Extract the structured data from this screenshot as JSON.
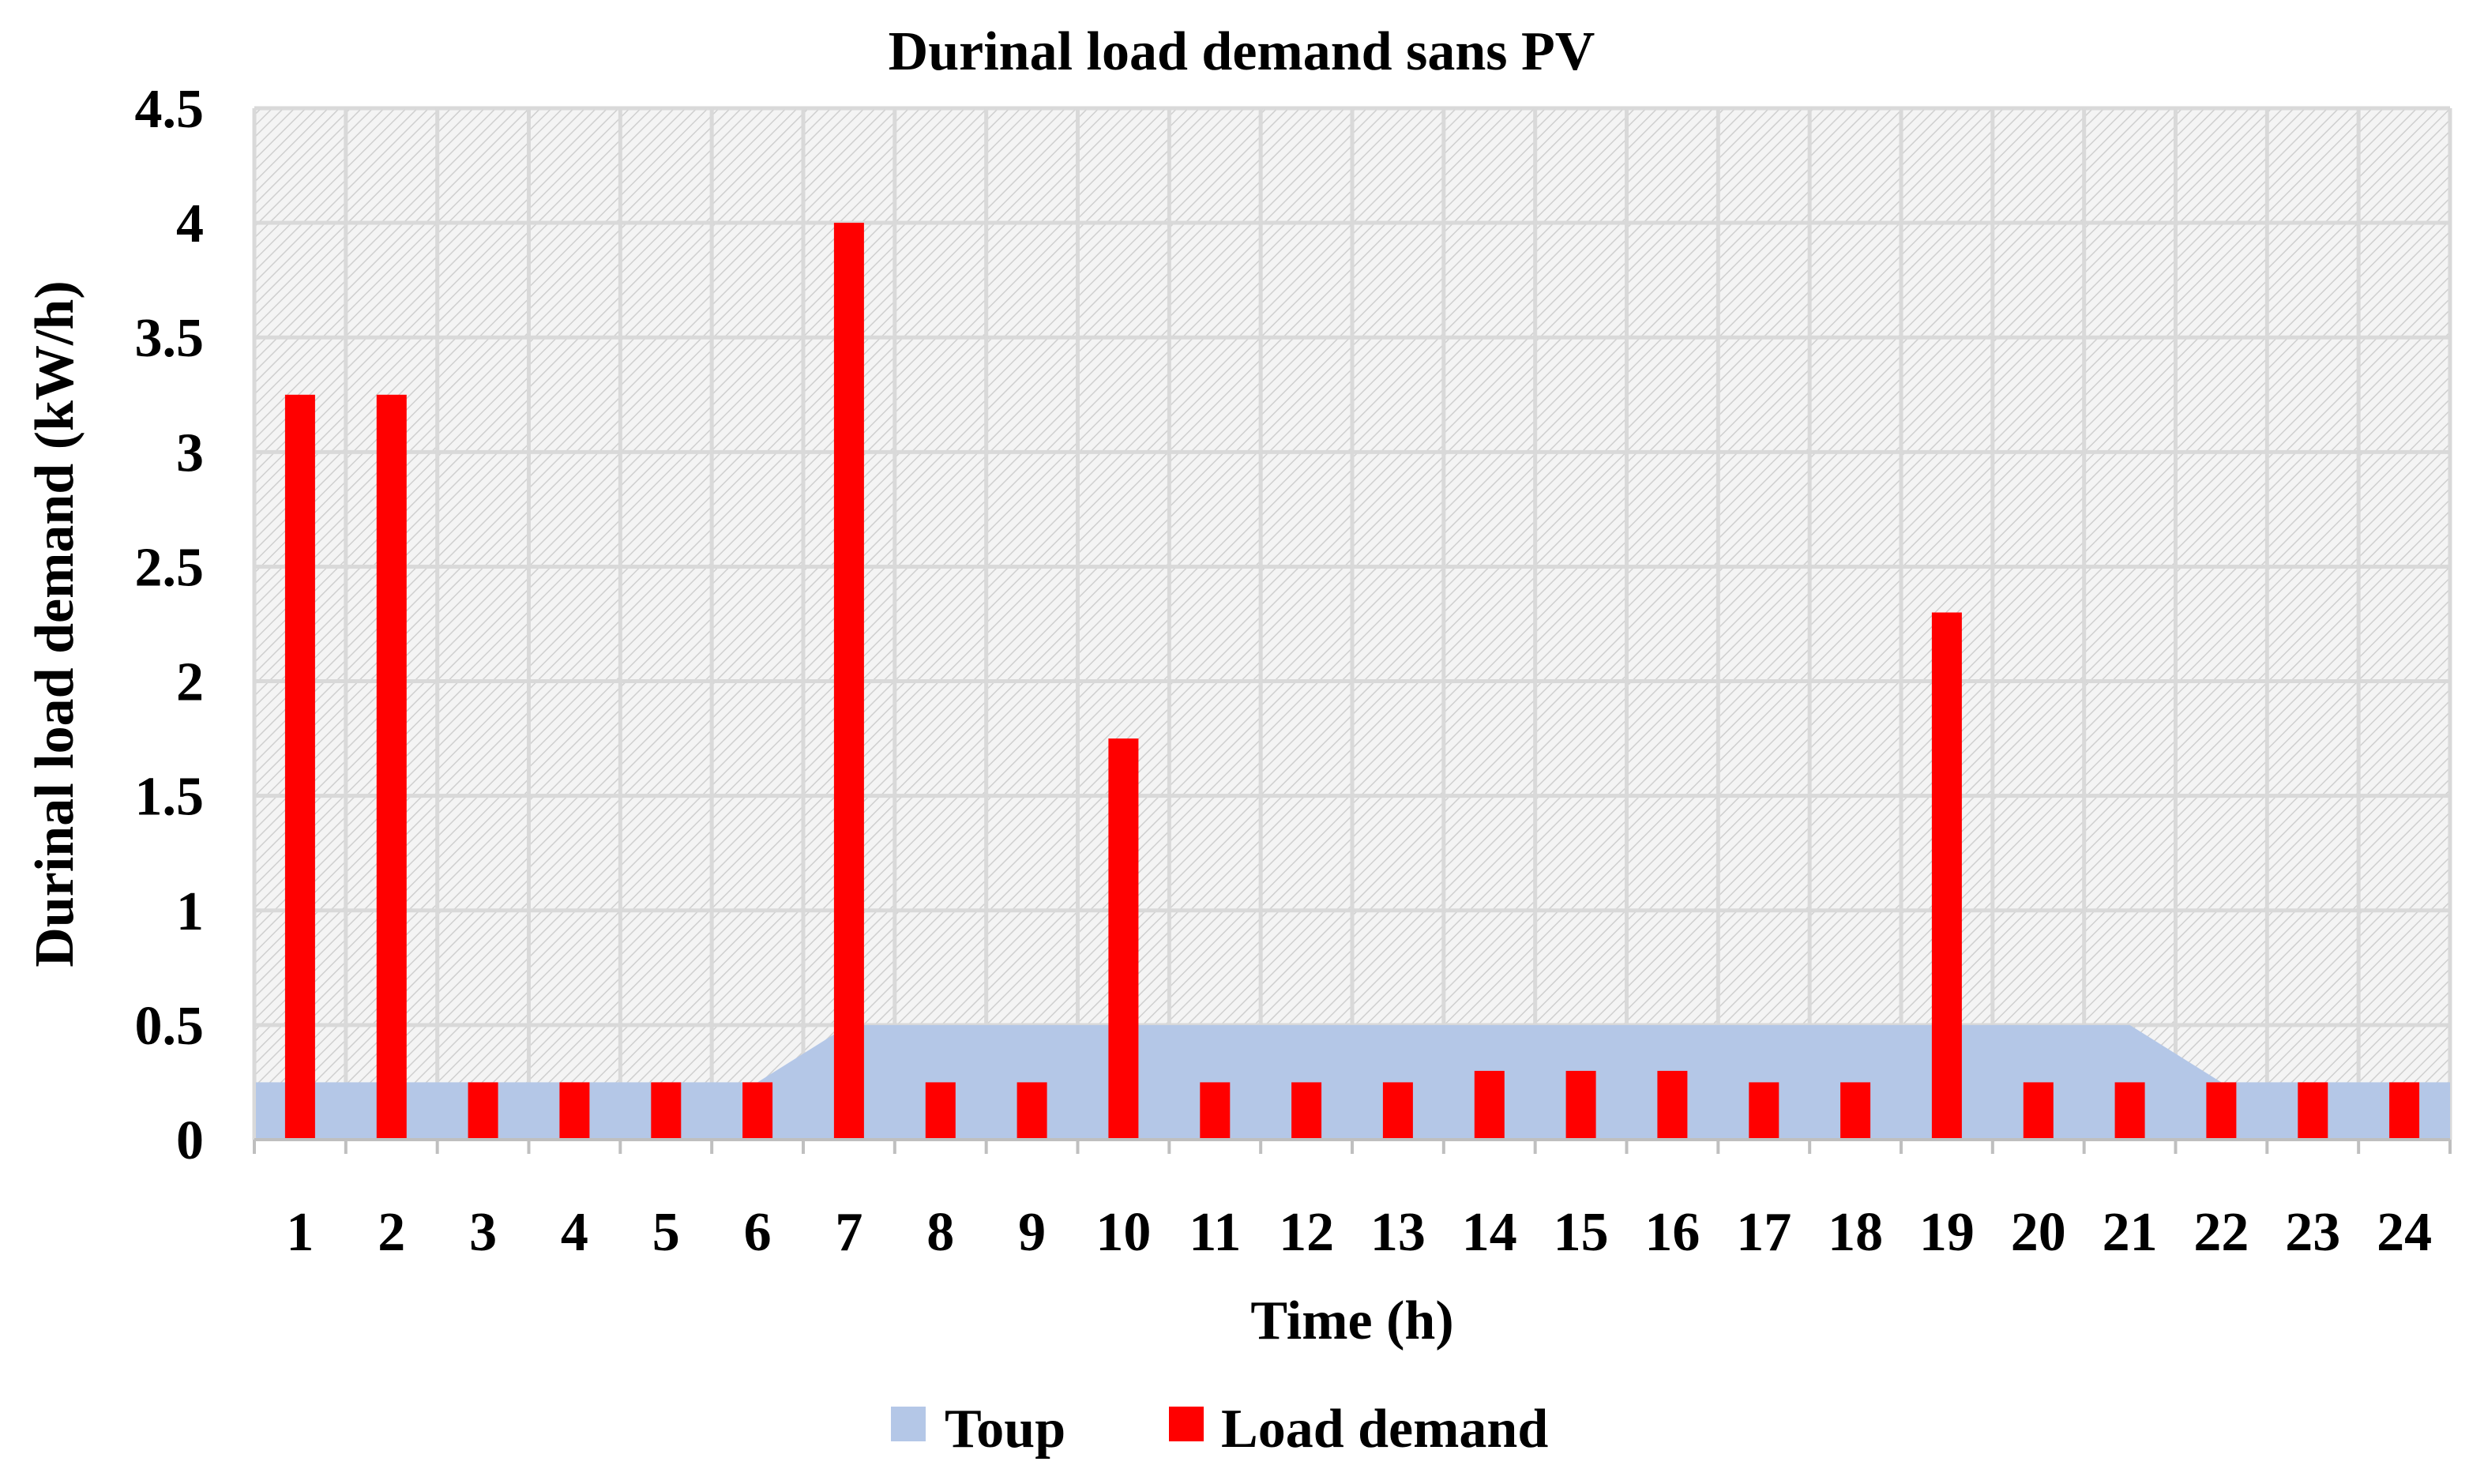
{
  "chart_data": {
    "type": "bar",
    "title": "Durinal load demand sans PV",
    "xlabel": "Time (h)",
    "ylabel": "Durinal load demand (kW/h)",
    "ylim": [
      0,
      4.5
    ],
    "yticks": [
      0,
      0.5,
      1,
      1.5,
      2,
      2.5,
      3,
      3.5,
      4,
      4.5
    ],
    "ytick_labels": [
      "0",
      "0.5",
      "1",
      "1.5",
      "2",
      "2.5",
      "3",
      "3.5",
      "4",
      "4.5"
    ],
    "categories": [
      "1",
      "2",
      "3",
      "4",
      "5",
      "6",
      "7",
      "8",
      "9",
      "10",
      "11",
      "12",
      "13",
      "14",
      "15",
      "16",
      "17",
      "18",
      "19",
      "20",
      "21",
      "22",
      "23",
      "24"
    ],
    "grid": true,
    "legend_position": "bottom-center",
    "series": [
      {
        "name": "Toup",
        "kind": "area",
        "color": "#b4c7e7",
        "values": [
          0.25,
          0.25,
          0.25,
          0.25,
          0.25,
          0.25,
          0.5,
          0.5,
          0.5,
          0.5,
          0.5,
          0.5,
          0.5,
          0.5,
          0.5,
          0.5,
          0.5,
          0.5,
          0.5,
          0.5,
          0.5,
          0.25,
          0.25,
          0.25
        ]
      },
      {
        "name": "Load demand",
        "kind": "bar",
        "color": "#ff0000",
        "values": [
          3.25,
          3.25,
          0.25,
          0.25,
          0.25,
          0.25,
          4.0,
          0.25,
          0.25,
          1.75,
          0.25,
          0.25,
          0.25,
          0.3,
          0.3,
          0.3,
          0.25,
          0.25,
          2.3,
          0.25,
          0.25,
          0.25,
          0.25,
          0.25
        ]
      }
    ]
  }
}
